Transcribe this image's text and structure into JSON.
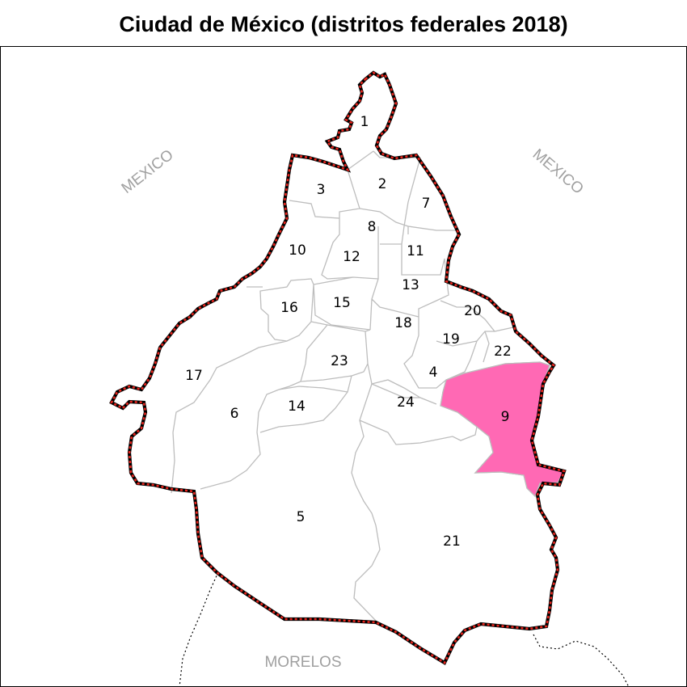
{
  "title": "Ciudad de México (distritos federales 2018)",
  "neighbors": {
    "mexico_west": "MEXICO",
    "mexico_east": "MEXICO",
    "morelos": "MORELOS"
  },
  "districts": [
    "1",
    "2",
    "3",
    "4",
    "5",
    "6",
    "7",
    "8",
    "9",
    "10",
    "11",
    "12",
    "13",
    "14",
    "15",
    "16",
    "17",
    "18",
    "19",
    "20",
    "21",
    "22",
    "23",
    "24"
  ],
  "highlighted_district": "9",
  "colors": {
    "highlight_fill": "#ff69b4",
    "district_border": "#bdbdbd",
    "outer_border_dash": "#e8241c",
    "outer_border_base": "#000000",
    "neighbor_label": "#a0a0a0"
  }
}
